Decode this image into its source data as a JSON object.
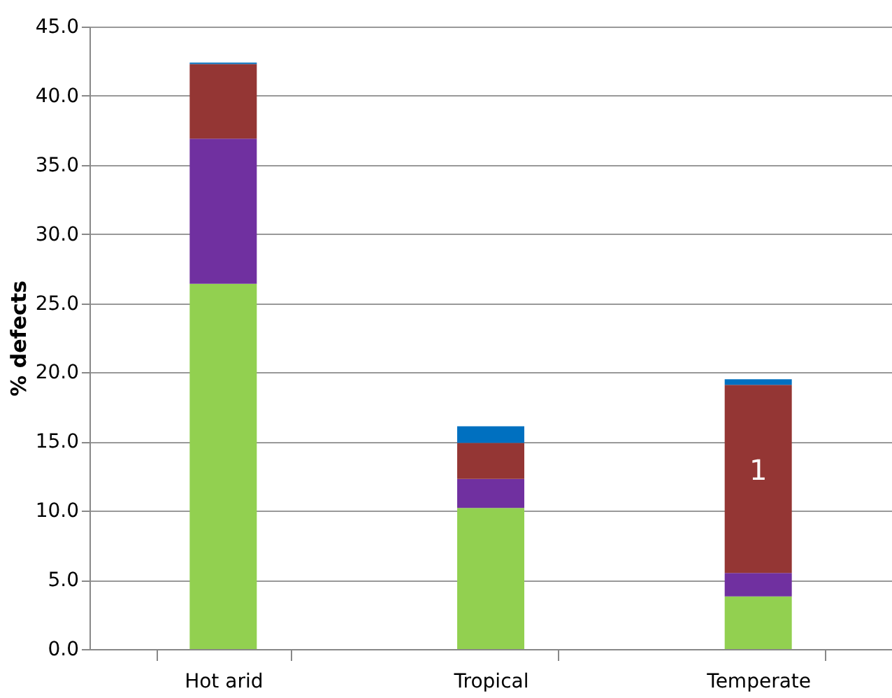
{
  "chart_data": {
    "type": "bar",
    "stacked": true,
    "ylabel": "% defects",
    "categories": [
      "Hot arid",
      "Tropical",
      "Temperate"
    ],
    "series": [
      {
        "color": "#92d050",
        "values": [
          26.4,
          10.2,
          3.8
        ]
      },
      {
        "color": "#7030a0",
        "values": [
          10.5,
          2.1,
          1.7
        ]
      },
      {
        "color": "#943634",
        "values": [
          5.4,
          2.6,
          13.6
        ]
      },
      {
        "color": "#0070c0",
        "values": [
          0.1,
          1.2,
          0.4
        ]
      }
    ],
    "annotations": [
      "1"
    ],
    "ylim": [
      0,
      45
    ],
    "yticks": [
      {
        "value": 0,
        "label": "0.0"
      },
      {
        "value": 5,
        "label": "5.0"
      },
      {
        "value": 10,
        "label": "10.0"
      },
      {
        "value": 15,
        "label": "15.0"
      },
      {
        "value": 20,
        "label": "20.0"
      },
      {
        "value": 25,
        "label": "25.0"
      },
      {
        "value": 30,
        "label": "30.0"
      },
      {
        "value": 35,
        "label": "35.0"
      },
      {
        "value": 40,
        "label": "40.0"
      },
      {
        "value": 45,
        "label": "45.0"
      }
    ],
    "grid": "y"
  }
}
